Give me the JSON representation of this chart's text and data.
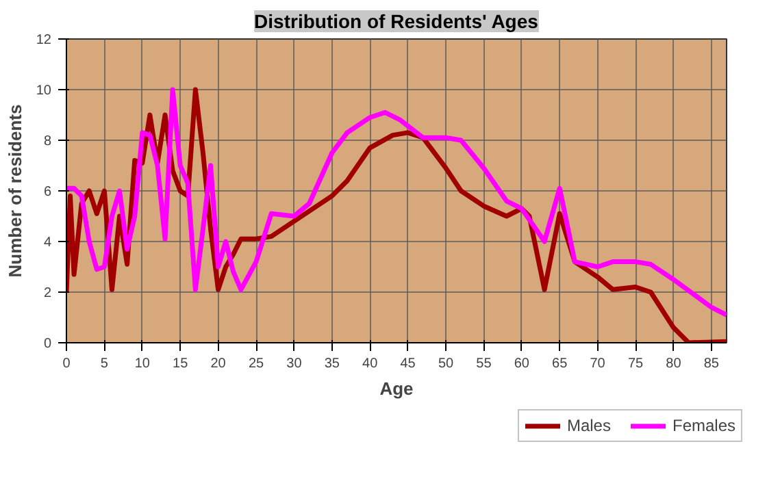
{
  "chart_data": {
    "type": "line",
    "title": "Distribution of Residents' Ages",
    "xlabel": "Age",
    "ylabel": "Number of residents",
    "xlim": [
      0,
      87
    ],
    "xticks": [
      0,
      5,
      10,
      15,
      20,
      25,
      30,
      35,
      40,
      45,
      50,
      55,
      60,
      65,
      70,
      75,
      80,
      85
    ],
    "ylim": [
      0,
      12
    ],
    "yticks": [
      0,
      2,
      4,
      6,
      8,
      10,
      12
    ],
    "grid": true,
    "legend": "bottom right",
    "series": [
      {
        "name": "Males",
        "color": "#a00000",
        "x": [
          0,
          0.5,
          1,
          2,
          3,
          4,
          5,
          6,
          7,
          8,
          9,
          10,
          11,
          12,
          13,
          14,
          15,
          16,
          17,
          18,
          19,
          20,
          21,
          22,
          23,
          25,
          27,
          30,
          35,
          37,
          40,
          43,
          45,
          47,
          50,
          52,
          55,
          58,
          60,
          61,
          63,
          65,
          67,
          70,
          72,
          75,
          77,
          80,
          82,
          87
        ],
        "values": [
          2,
          5.8,
          2.7,
          5.5,
          6,
          5.1,
          6,
          2.1,
          5,
          3.1,
          7.2,
          7.1,
          9,
          7.1,
          9,
          6.8,
          6,
          5.8,
          10,
          7.5,
          4.5,
          2.1,
          3,
          3.5,
          4.1,
          4.1,
          4.2,
          4.8,
          5.8,
          6.4,
          7.7,
          8.2,
          8.3,
          8.1,
          6.9,
          6,
          5.4,
          5,
          5.3,
          5,
          2.1,
          5.1,
          3.2,
          2.6,
          2.1,
          2.2,
          2,
          0.6,
          0,
          0.05
        ]
      },
      {
        "name": "Females",
        "color": "#ff00ff",
        "x": [
          0,
          1,
          2,
          3,
          4,
          5,
          6,
          7,
          8,
          9,
          10,
          11,
          12,
          13,
          14,
          15,
          16,
          17,
          18,
          19,
          20,
          21,
          22,
          23,
          25,
          27,
          30,
          32,
          35,
          37,
          40,
          42,
          44,
          47,
          50,
          52,
          55,
          58,
          60,
          63,
          65,
          67,
          70,
          72,
          75,
          77,
          80,
          85,
          87
        ],
        "values": [
          6.1,
          6.1,
          5.8,
          4,
          2.9,
          3,
          5,
          6,
          3.7,
          5,
          8.3,
          8.2,
          7,
          4.1,
          10,
          7,
          6.3,
          2.1,
          4.5,
          7,
          3,
          4,
          2.8,
          2.1,
          3.2,
          5.1,
          5,
          5.5,
          7.5,
          8.3,
          8.9,
          9.1,
          8.8,
          8.1,
          8.1,
          8,
          6.9,
          5.6,
          5.3,
          4,
          6.1,
          3.2,
          3,
          3.2,
          3.2,
          3.1,
          2.5,
          1.4,
          1.1
        ]
      }
    ]
  }
}
